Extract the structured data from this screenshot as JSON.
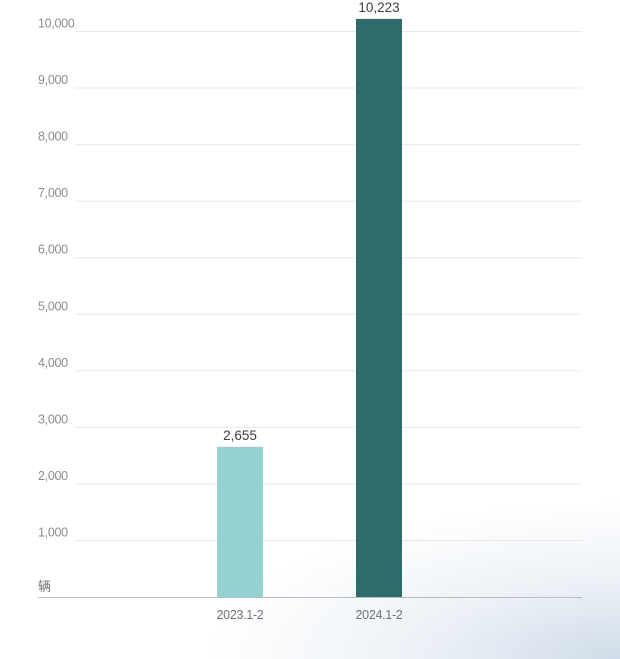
{
  "chart_data": {
    "type": "bar",
    "unit_label": "辆",
    "categories": [
      "2023.1-2",
      "2024.1-2"
    ],
    "values": [
      2655,
      10223
    ],
    "value_labels": [
      "2,655",
      "10,223"
    ],
    "bar_colors": [
      "#94d2d1",
      "#2f6b6b"
    ],
    "y_ticks": [
      1000,
      2000,
      3000,
      4000,
      5000,
      6000,
      7000,
      8000,
      9000,
      10000
    ],
    "y_tick_labels": [
      "1,000",
      "2,000",
      "3,000",
      "4,000",
      "5,000",
      "6,000",
      "7,000",
      "8,000",
      "9,000",
      "10,000"
    ],
    "ylim": [
      0,
      10000
    ],
    "grid": true,
    "legend": "none"
  }
}
